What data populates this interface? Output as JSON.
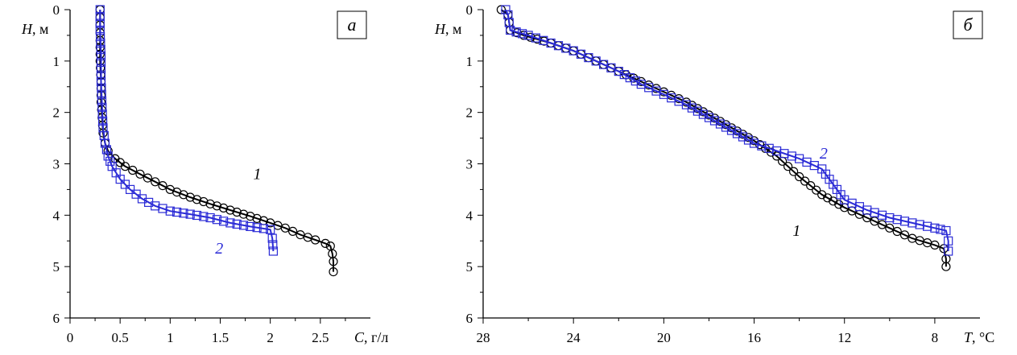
{
  "chart_data": [
    {
      "type": "line",
      "panel_label": "а",
      "xlabel_var": "C",
      "xlabel_unit": ", г/л",
      "ylabel_var": "H",
      "ylabel_unit": ", м",
      "xlim": [
        0,
        3
      ],
      "ylim": [
        0,
        6
      ],
      "y_inverted": true,
      "x_inverted": false,
      "xticks": [
        "0",
        "0.5",
        "1",
        "1.5",
        "2",
        "2.5"
      ],
      "xtick_values": [
        0,
        0.5,
        1,
        1.5,
        2,
        2.5
      ],
      "yticks": [
        "0",
        "1",
        "2",
        "3",
        "4",
        "5",
        "6"
      ],
      "yticks_values": [
        0,
        1,
        2,
        3,
        4,
        5,
        6
      ],
      "grid": false,
      "series": [
        {
          "name": "1",
          "color": "#000000",
          "marker": "circle",
          "points": [
            [
              0.3,
              0.0
            ],
            [
              0.3,
              0.3
            ],
            [
              0.3,
              0.6
            ],
            [
              0.3,
              1.0
            ],
            [
              0.31,
              1.4
            ],
            [
              0.31,
              1.8
            ],
            [
              0.32,
              2.1
            ],
            [
              0.33,
              2.4
            ],
            [
              0.35,
              2.6
            ],
            [
              0.38,
              2.75
            ],
            [
              0.45,
              2.9
            ],
            [
              0.55,
              3.05
            ],
            [
              0.7,
              3.2
            ],
            [
              0.85,
              3.35
            ],
            [
              1.0,
              3.5
            ],
            [
              1.2,
              3.65
            ],
            [
              1.4,
              3.78
            ],
            [
              1.6,
              3.9
            ],
            [
              1.8,
              4.02
            ],
            [
              2.0,
              4.15
            ],
            [
              2.15,
              4.25
            ],
            [
              2.3,
              4.38
            ],
            [
              2.45,
              4.48
            ],
            [
              2.55,
              4.55
            ],
            [
              2.6,
              4.6
            ],
            [
              2.62,
              4.75
            ],
            [
              2.63,
              4.9
            ],
            [
              2.63,
              5.1
            ]
          ],
          "label_at": [
            1.83,
            3.3
          ]
        },
        {
          "name": "2",
          "color": "#2b2bd6",
          "marker": "square",
          "points": [
            [
              0.3,
              0.0
            ],
            [
              0.3,
              0.4
            ],
            [
              0.31,
              0.9
            ],
            [
              0.31,
              1.4
            ],
            [
              0.32,
              1.9
            ],
            [
              0.33,
              2.3
            ],
            [
              0.35,
              2.6
            ],
            [
              0.38,
              2.85
            ],
            [
              0.42,
              3.05
            ],
            [
              0.5,
              3.3
            ],
            [
              0.6,
              3.5
            ],
            [
              0.72,
              3.68
            ],
            [
              0.85,
              3.82
            ],
            [
              1.0,
              3.92
            ],
            [
              1.2,
              3.98
            ],
            [
              1.4,
              4.05
            ],
            [
              1.6,
              4.15
            ],
            [
              1.8,
              4.22
            ],
            [
              2.0,
              4.28
            ],
            [
              2.02,
              4.45
            ],
            [
              2.03,
              4.7
            ]
          ],
          "label_at": [
            1.45,
            4.75
          ]
        }
      ]
    },
    {
      "type": "line",
      "panel_label": "б",
      "xlabel_var": "T",
      "xlabel_unit": ", °C",
      "ylabel_var": "H",
      "ylabel_unit": ", м",
      "xlim": [
        28,
        6
      ],
      "ylim": [
        0,
        6
      ],
      "y_inverted": true,
      "x_inverted": true,
      "xticks": [
        "28",
        "24",
        "20",
        "16",
        "12",
        "8"
      ],
      "xtick_values": [
        28,
        24,
        20,
        16,
        12,
        8
      ],
      "yticks": [
        "0",
        "1",
        "2",
        "3",
        "4",
        "5",
        "6"
      ],
      "yticks_values": [
        0,
        1,
        2,
        3,
        4,
        5,
        6
      ],
      "grid": false,
      "series": [
        {
          "name": "1",
          "color": "#000000",
          "marker": "circle",
          "points": [
            [
              27.2,
              0.0
            ],
            [
              26.9,
              0.1
            ],
            [
              26.8,
              0.4
            ],
            [
              26.2,
              0.5
            ],
            [
              25.0,
              0.65
            ],
            [
              24.0,
              0.8
            ],
            [
              23.0,
              1.0
            ],
            [
              22.0,
              1.2
            ],
            [
              21.0,
              1.4
            ],
            [
              20.0,
              1.6
            ],
            [
              19.0,
              1.8
            ],
            [
              18.0,
              2.05
            ],
            [
              17.0,
              2.3
            ],
            [
              16.0,
              2.55
            ],
            [
              15.0,
              2.85
            ],
            [
              14.0,
              3.25
            ],
            [
              13.0,
              3.6
            ],
            [
              12.0,
              3.85
            ],
            [
              11.0,
              4.05
            ],
            [
              10.0,
              4.25
            ],
            [
              9.0,
              4.45
            ],
            [
              8.0,
              4.58
            ],
            [
              7.6,
              4.65
            ],
            [
              7.5,
              4.85
            ],
            [
              7.5,
              5.0
            ]
          ],
          "label_at": [
            14.3,
            4.4
          ]
        },
        {
          "name": "2",
          "color": "#2b2bd6",
          "marker": "square",
          "points": [
            [
              27.0,
              0.0
            ],
            [
              26.9,
              0.1
            ],
            [
              26.8,
              0.4
            ],
            [
              26.0,
              0.5
            ],
            [
              25.0,
              0.65
            ],
            [
              24.0,
              0.8
            ],
            [
              23.0,
              1.0
            ],
            [
              22.0,
              1.2
            ],
            [
              21.0,
              1.45
            ],
            [
              20.0,
              1.65
            ],
            [
              19.0,
              1.85
            ],
            [
              18.0,
              2.1
            ],
            [
              17.0,
              2.35
            ],
            [
              16.0,
              2.6
            ],
            [
              15.0,
              2.75
            ],
            [
              14.0,
              2.9
            ],
            [
              13.0,
              3.1
            ],
            [
              12.5,
              3.4
            ],
            [
              12.0,
              3.7
            ],
            [
              11.0,
              3.9
            ],
            [
              10.0,
              4.05
            ],
            [
              9.0,
              4.15
            ],
            [
              8.0,
              4.25
            ],
            [
              7.5,
              4.3
            ],
            [
              7.4,
              4.5
            ],
            [
              7.4,
              4.7
            ]
          ],
          "label_at": [
            13.1,
            2.9
          ]
        }
      ]
    }
  ]
}
